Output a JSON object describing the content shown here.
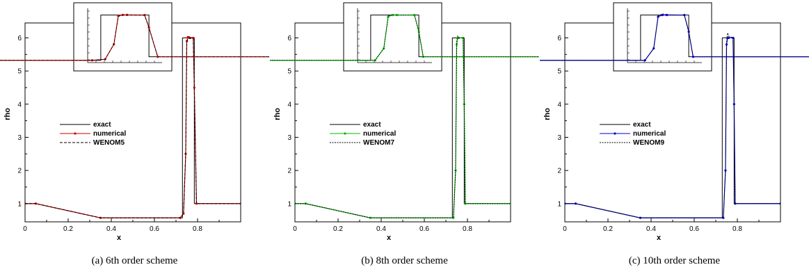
{
  "chart_data": [
    {
      "type": "line",
      "caption": "(a) 6th order scheme",
      "xlabel": "x",
      "ylabel": "rho",
      "xlim": [
        0,
        1
      ],
      "ylim": [
        0.45,
        6.45
      ],
      "xticks": [
        "0",
        "0.2",
        "0.4",
        "0.6",
        "0.8"
      ],
      "yticks": [
        "1",
        "2",
        "3",
        "4",
        "5",
        "6"
      ],
      "numerical_color": "#cc0000",
      "legend": {
        "placement": "center-left",
        "entries": [
          "exact",
          "numerical",
          "WENOM5"
        ]
      },
      "inset": true,
      "series": [
        {
          "name": "exact",
          "style": "solid",
          "color": "#000000",
          "x": [
            0,
            0.05,
            0.35,
            0.73,
            0.73,
            0.785,
            0.785,
            1.0
          ],
          "y": [
            1.0,
            1.0,
            0.57,
            0.57,
            6.0,
            6.0,
            1.0,
            1.0
          ]
        },
        {
          "name": "numerical",
          "style": "solid-markers",
          "color": "#cc0000",
          "x": [
            0,
            0.05,
            0.35,
            0.72,
            0.735,
            0.745,
            0.75,
            0.755,
            0.76,
            0.78,
            0.785,
            0.795,
            1.0
          ],
          "y": [
            1.0,
            1.0,
            0.57,
            0.57,
            0.7,
            2.5,
            5.9,
            6.02,
            6.02,
            6.0,
            4.5,
            1.0,
            1.0
          ]
        },
        {
          "name": "WENOM5",
          "style": "dashed",
          "color": "#000000",
          "x": [
            0,
            0.05,
            0.35,
            0.72,
            0.735,
            0.745,
            0.75,
            0.755,
            0.76,
            0.78,
            0.785,
            0.795,
            1.0
          ],
          "y": [
            1.0,
            1.0,
            0.57,
            0.57,
            0.7,
            2.5,
            5.85,
            5.98,
            5.98,
            5.98,
            4.5,
            1.0,
            1.0
          ]
        }
      ]
    },
    {
      "type": "line",
      "caption": "(b) 8th order scheme",
      "xlabel": "x",
      "ylabel": "rho",
      "xlim": [
        0,
        1
      ],
      "ylim": [
        0.45,
        6.45
      ],
      "xticks": [
        "0",
        "0.2",
        "0.4",
        "0.6",
        "0.8"
      ],
      "yticks": [
        "1",
        "2",
        "3",
        "4",
        "5",
        "6"
      ],
      "numerical_color": "#00bb00",
      "legend": {
        "placement": "center-left",
        "entries": [
          "exact",
          "numerical",
          "WENOM7"
        ]
      },
      "inset": true,
      "series": [
        {
          "name": "exact",
          "style": "solid",
          "color": "#000000",
          "x": [
            0,
            0.05,
            0.35,
            0.73,
            0.73,
            0.785,
            0.785,
            1.0
          ],
          "y": [
            1.0,
            1.0,
            0.57,
            0.57,
            6.0,
            6.0,
            1.0,
            1.0
          ]
        },
        {
          "name": "numerical",
          "style": "solid-markers",
          "color": "#00bb00",
          "x": [
            0,
            0.05,
            0.35,
            0.735,
            0.745,
            0.75,
            0.755,
            0.76,
            0.78,
            0.785,
            0.79,
            1.0
          ],
          "y": [
            1.0,
            1.0,
            0.57,
            0.57,
            2.0,
            5.8,
            6.0,
            6.0,
            6.0,
            4.0,
            1.0,
            1.0
          ]
        },
        {
          "name": "WENOM7",
          "style": "dashed",
          "color": "#000000",
          "x": [
            0,
            0.05,
            0.35,
            0.735,
            0.745,
            0.75,
            0.755,
            0.76,
            0.78,
            0.785,
            0.79,
            1.0
          ],
          "y": [
            1.0,
            1.0,
            0.57,
            0.57,
            2.0,
            5.9,
            6.05,
            6.0,
            6.0,
            4.0,
            1.0,
            1.0
          ]
        }
      ]
    },
    {
      "type": "line",
      "caption": "(c) 10th order scheme",
      "xlabel": "x",
      "ylabel": "rho",
      "xlim": [
        0,
        1
      ],
      "ylim": [
        0.45,
        6.45
      ],
      "xticks": [
        "0",
        "0.2",
        "0.4",
        "0.6",
        "0.8"
      ],
      "yticks": [
        "1",
        "2",
        "3",
        "4",
        "5",
        "6"
      ],
      "numerical_color": "#0000dd",
      "legend": {
        "placement": "center-left",
        "entries": [
          "exact",
          "numerical",
          "WENOM9"
        ]
      },
      "inset": true,
      "series": [
        {
          "name": "exact",
          "style": "solid",
          "color": "#000000",
          "x": [
            0,
            0.05,
            0.35,
            0.73,
            0.73,
            0.785,
            0.785,
            1.0
          ],
          "y": [
            1.0,
            1.0,
            0.57,
            0.57,
            6.0,
            6.0,
            1.0,
            1.0
          ]
        },
        {
          "name": "numerical",
          "style": "solid-markers",
          "color": "#0000dd",
          "x": [
            0,
            0.05,
            0.35,
            0.735,
            0.745,
            0.75,
            0.755,
            0.76,
            0.78,
            0.785,
            0.79,
            1.0
          ],
          "y": [
            1.0,
            1.0,
            0.57,
            0.57,
            2.0,
            5.8,
            6.0,
            6.0,
            6.0,
            4.0,
            1.0,
            1.0
          ]
        },
        {
          "name": "WENOM9",
          "style": "dashed",
          "color": "#000000",
          "x": [
            0,
            0.05,
            0.35,
            0.735,
            0.745,
            0.75,
            0.755,
            0.76,
            0.78,
            0.785,
            0.79,
            1.0
          ],
          "y": [
            1.0,
            1.0,
            0.57,
            0.57,
            2.0,
            5.9,
            6.15,
            6.05,
            6.0,
            4.0,
            1.0,
            1.0
          ]
        }
      ]
    }
  ]
}
